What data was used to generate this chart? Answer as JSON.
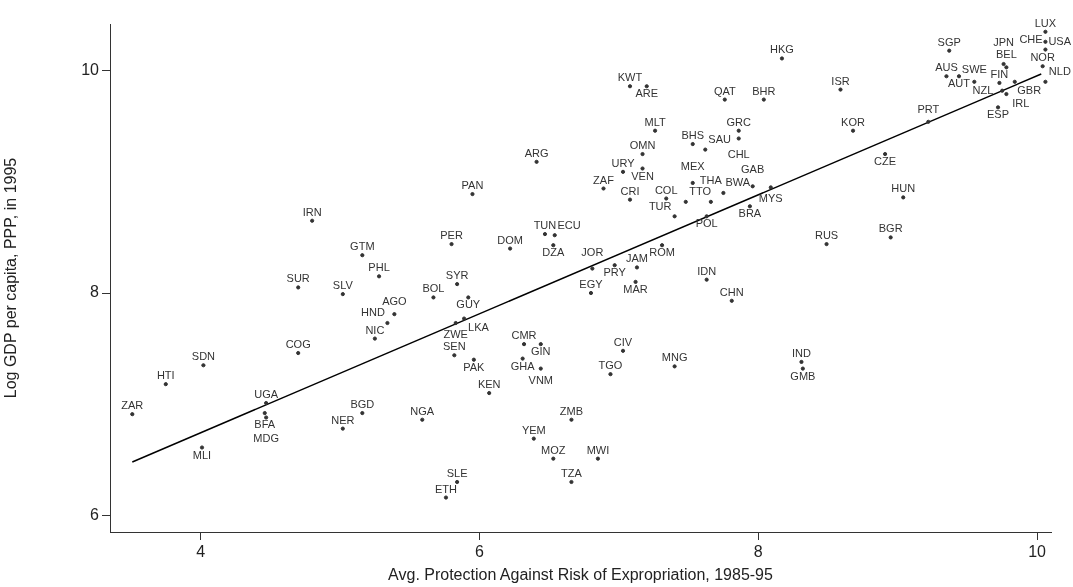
{
  "chart_data": {
    "type": "scatter",
    "xlabel": "Avg. Protection Against Risk of Expropriation, 1985-95",
    "ylabel": "Log GDP per capita, PPP, in 1995",
    "xlim": [
      3.35,
      10.1
    ],
    "ylim": [
      5.85,
      10.42
    ],
    "xticks": [
      4,
      6,
      8,
      10
    ],
    "yticks": [
      6,
      8,
      10
    ],
    "grid": false,
    "legend": false,
    "series": [
      {
        "color": "#333333",
        "marker": "circle",
        "x": [
          3.51,
          3.75,
          4.02,
          4.01,
          4.47,
          4.46,
          4.47,
          4.7,
          5.02,
          5.16,
          5.25,
          5.34,
          5.39,
          4.7,
          5.02,
          5.28,
          5.16,
          4.8,
          5.67,
          5.84,
          5.92,
          5.8,
          5.95,
          5.59,
          5.83,
          5.89,
          5.82,
          5.96,
          6.31,
          6.44,
          6.32,
          6.44,
          6.07,
          5.84,
          5.76,
          6.39,
          6.66,
          6.53,
          6.85,
          6.66,
          7.03,
          6.94,
          7.4,
          8.31,
          8.32,
          6.8,
          7.12,
          6.81,
          6.97,
          7.13,
          7.63,
          7.81,
          7.31,
          6.22,
          6.47,
          6.54,
          6.53,
          6.41,
          6.89,
          7.08,
          7.03,
          7.17,
          7.17,
          7.26,
          7.08,
          7.2,
          7.34,
          7.48,
          7.66,
          7.53,
          7.75,
          7.96,
          8.09,
          7.94,
          7.4,
          7.63,
          7.53,
          7.62,
          7.86,
          7.86,
          7.76,
          8.04,
          8.17,
          8.59,
          8.68,
          8.91,
          9.04,
          8.49,
          8.95,
          9.22,
          9.37,
          9.35,
          9.44,
          9.55,
          9.72,
          9.84,
          9.78,
          9.76,
          9.73,
          9.75,
          9.78,
          10.04,
          10.06,
          10.06,
          10.06,
          10.06
        ],
        "values": [
          6.91,
          7.18,
          7.35,
          6.61,
          7.01,
          6.92,
          6.88,
          7.46,
          6.78,
          6.92,
          7.59,
          7.73,
          7.81,
          8.05,
          7.99,
          8.15,
          8.34,
          8.65,
          7.96,
          8.08,
          7.96,
          8.44,
          8.89,
          6.86,
          7.73,
          7.77,
          7.44,
          7.4,
          7.41,
          7.32,
          7.54,
          7.54,
          7.1,
          6.3,
          6.16,
          6.69,
          6.86,
          6.51,
          6.51,
          6.3,
          7.48,
          7.27,
          7.34,
          7.38,
          7.32,
          8.0,
          8.1,
          8.22,
          8.25,
          8.23,
          8.12,
          7.93,
          8.43,
          8.4,
          8.53,
          8.52,
          8.43,
          9.18,
          8.94,
          8.84,
          9.09,
          9.12,
          9.25,
          9.46,
          9.86,
          9.86,
          8.85,
          8.82,
          8.82,
          8.99,
          8.9,
          8.96,
          8.95,
          8.78,
          8.69,
          8.69,
          9.34,
          9.29,
          9.46,
          9.39,
          9.74,
          9.74,
          10.11,
          9.83,
          9.46,
          9.25,
          8.86,
          8.44,
          8.5,
          9.54,
          10.18,
          9.95,
          9.95,
          9.9,
          9.67,
          9.9,
          10.03,
          10.06,
          9.89,
          9.82,
          9.79,
          10.04,
          9.9,
          10.35,
          10.26,
          10.19
        ],
        "value_labels": [
          "ZAR",
          "HTI",
          "SDN",
          "MLI",
          "UGA",
          "BFA",
          "MDG",
          "COG",
          "NER",
          "BGD",
          "NIC",
          "HND",
          "AGO",
          "SUR",
          "SLV",
          "PHL",
          "GTM",
          "IRN",
          "BOL",
          "SYR",
          "GUY",
          "PER",
          "PAN",
          "NGA",
          "ZWE",
          "LKA",
          "SEN",
          "PAK",
          "GHA",
          "VNM",
          "CMR",
          "GIN",
          "KEN",
          "SLE",
          "ETH",
          "YEM",
          "ZMB",
          "MOZ",
          "MWI",
          "TZA",
          "CIV",
          "TGO",
          "MNG",
          "IND",
          "GMB",
          "EGY",
          "MAR",
          "JOR",
          "PRY",
          "JAM",
          "IDN",
          "CHN",
          "ROM",
          "DOM",
          "TUN",
          "ECU",
          "DZA",
          "ARG",
          "ZAF",
          "CRI",
          "URY",
          "VEN",
          "OMN",
          "MLT",
          "KWT",
          "ARE",
          "COL",
          "TTO",
          "THA",
          "MEX",
          "BWA",
          "GAB",
          "MYS",
          "BRA",
          "TUR",
          "POL",
          "BHS",
          "SAU",
          "GRC",
          "CHL",
          "QAT",
          "BHR",
          "HKG",
          "ISR",
          "KOR",
          "CZE",
          "HUN",
          "RUS",
          "BGR",
          "PRT",
          "SGP",
          "AUS",
          "AUT",
          "SWE",
          "ESP",
          "GBR",
          "BEL",
          "JPN",
          "FIN",
          "NZL",
          "IRL",
          "NOR",
          "NLD",
          "LUX",
          "USA",
          "CHE"
        ]
      },
      {
        "type": "line",
        "color": "#000000",
        "x": [
          3.51,
          10.03
        ],
        "values": [
          6.48,
          9.97
        ]
      }
    ]
  }
}
